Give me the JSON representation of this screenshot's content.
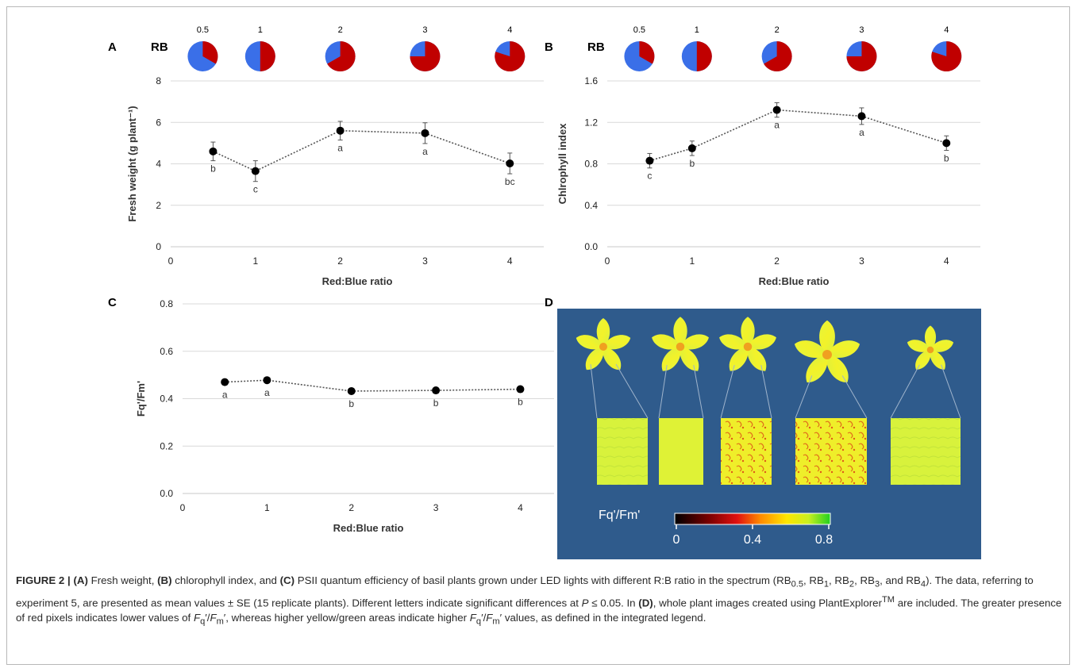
{
  "panels": {
    "A": {
      "letter": "A",
      "rb_label": "RB"
    },
    "B": {
      "letter": "B",
      "rb_label": "RB"
    },
    "C": {
      "letter": "C"
    },
    "D": {
      "letter": "D",
      "legend_label": "Fq'/Fm'",
      "legend_ticks": [
        "0",
        "0.4",
        "0.8"
      ]
    }
  },
  "chart_data": [
    {
      "panel": "A",
      "type": "line",
      "x": [
        0.5,
        1,
        2,
        3,
        4
      ],
      "values": [
        4.6,
        3.65,
        5.6,
        5.48,
        4.02
      ],
      "errors": [
        0.45,
        0.5,
        0.45,
        0.5,
        0.5
      ],
      "letters": [
        "b",
        "c",
        "a",
        "a",
        "bc"
      ],
      "xlabel": "Red:Blue ratio",
      "ylabel": "Fresh weight (g plant⁻¹)",
      "xlim": [
        0,
        4.4
      ],
      "ylim": [
        0,
        8
      ],
      "xticks": [
        "0",
        "1",
        "2",
        "3",
        "4"
      ],
      "yticks": [
        "0",
        "2",
        "4",
        "6",
        "8"
      ],
      "pies": {
        "labels": [
          "0.5",
          "1",
          "2",
          "3",
          "4"
        ],
        "red_fraction": [
          0.333,
          0.5,
          0.667,
          0.75,
          0.8
        ]
      },
      "grid": "horizontal",
      "legend": "none"
    },
    {
      "panel": "B",
      "type": "line",
      "x": [
        0.5,
        1,
        2,
        3,
        4
      ],
      "values": [
        0.83,
        0.95,
        1.32,
        1.26,
        1.0
      ],
      "errors": [
        0.07,
        0.07,
        0.07,
        0.08,
        0.07
      ],
      "letters": [
        "c",
        "b",
        "a",
        "a",
        "b"
      ],
      "xlabel": "Red:Blue ratio",
      "ylabel": "Chlrophyll index",
      "xlim": [
        0,
        4.4
      ],
      "ylim": [
        0,
        1.6
      ],
      "xticks": [
        "0",
        "1",
        "2",
        "3",
        "4"
      ],
      "yticks": [
        "0.0",
        "0.4",
        "0.8",
        "1.2",
        "1.6"
      ],
      "pies": {
        "labels": [
          "0.5",
          "1",
          "2",
          "3",
          "4"
        ],
        "red_fraction": [
          0.333,
          0.5,
          0.667,
          0.75,
          0.8
        ]
      },
      "grid": "horizontal",
      "legend": "none"
    },
    {
      "panel": "C",
      "type": "line",
      "x": [
        0.5,
        1,
        2,
        3,
        4
      ],
      "values": [
        0.47,
        0.478,
        0.432,
        0.435,
        0.44
      ],
      "errors": [
        0.008,
        0.008,
        0.006,
        0.006,
        0.006
      ],
      "letters": [
        "a",
        "a",
        "b",
        "b",
        "b"
      ],
      "xlabel": "Red:Blue ratio",
      "ylabel": "Fq'/Fm'",
      "xlim": [
        0,
        4.4
      ],
      "ylim": [
        0,
        0.8
      ],
      "xticks": [
        "0",
        "1",
        "2",
        "3",
        "4"
      ],
      "yticks": [
        "0.0",
        "0.2",
        "0.4",
        "0.6",
        "0.8"
      ],
      "grid": "horizontal",
      "legend": "none"
    }
  ],
  "caption": {
    "figure_label": "FIGURE 2 |",
    "a_tag": "(A)",
    "a_text": " Fresh weight, ",
    "b_tag": "(B)",
    "b_text": " chlorophyll index, and ",
    "c_tag": "(C)",
    "c_text": " PSII quantum efficiency of basil plants grown under LED lights with different R:B ratio in the spectrum (RB",
    "sub_05": "0.5",
    "sep1": ", RB",
    "sub_1": "1",
    "sep2": ", RB",
    "sub_2": "2",
    "sep3": ", RB",
    "sub_3": "3",
    "sep4": ", and RB",
    "sub_4": "4",
    "text2": "). The data, referring to experiment 5, are presented as mean values ± SE (15 replicate plants). Different letters indicate significant differences at ",
    "p_italic": "P",
    "text3": " ≤ 0.05. In ",
    "d_tag": "(D)",
    "text4": ", whole plant images created using PlantExplorer",
    "tm": "TM",
    "text5": " are included. The greater presence of red pixels indicates lower values of ",
    "fq1": "F",
    "fq1_sub": "q",
    "fq1_rest": "′/",
    "fm1": "F",
    "fm1_sub": "m",
    "fm1_rest": "′,",
    "text6": " whereas higher yellow/green areas indicate higher ",
    "fq2": "F",
    "fq2_sub": "q",
    "fq2_rest": "′/",
    "fm2": "F",
    "fm2_sub": "m",
    "fm2_rest": "′",
    "text7": " values, as defined in the integrated legend."
  },
  "colors": {
    "pie_red": "#c00000",
    "pie_blue": "#3a6fe8",
    "panel_d_bg": "#2f5b8c"
  }
}
